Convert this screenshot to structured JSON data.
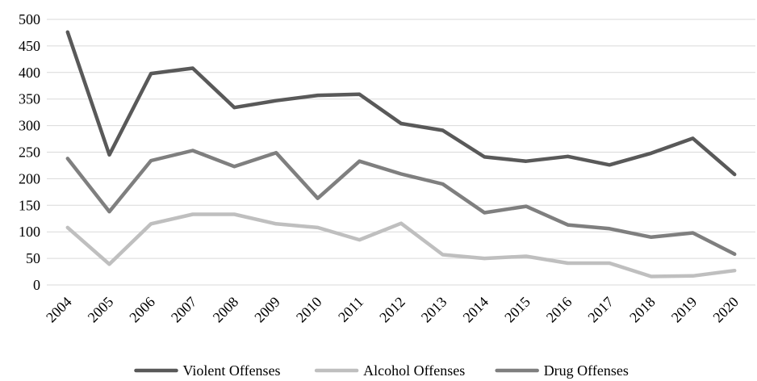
{
  "chart_data": {
    "type": "line",
    "title": "",
    "xlabel": "",
    "ylabel": "",
    "categories": [
      "2004",
      "2005",
      "2006",
      "2007",
      "2008",
      "2009",
      "2010",
      "2011",
      "2012",
      "2013",
      "2014",
      "2015",
      "2016",
      "2017",
      "2018",
      "2019",
      "2020"
    ],
    "ylim": [
      0,
      500
    ],
    "yticks": [
      "0",
      "50",
      "100",
      "150",
      "200",
      "250",
      "300",
      "350",
      "400",
      "450",
      "500"
    ],
    "grid": true,
    "legend_position": "bottom",
    "series": [
      {
        "name": "Violent Offenses",
        "color": "#595959",
        "values": [
          476,
          245,
          398,
          408,
          334,
          347,
          357,
          359,
          304,
          291,
          241,
          233,
          242,
          226,
          248,
          276,
          208
        ]
      },
      {
        "name": "Alcohol Offenses",
        "color": "#bfbfbf",
        "values": [
          108,
          39,
          115,
          133,
          133,
          115,
          108,
          85,
          116,
          57,
          50,
          54,
          41,
          41,
          16,
          17,
          27
        ]
      },
      {
        "name": "Drug Offenses",
        "color": "#7f7f7f",
        "values": [
          238,
          138,
          234,
          253,
          223,
          249,
          163,
          233,
          209,
          190,
          136,
          148,
          113,
          106,
          90,
          98,
          58
        ]
      }
    ]
  }
}
